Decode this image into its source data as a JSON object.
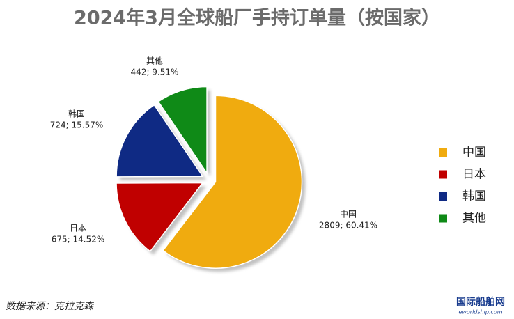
{
  "chart_data": {
    "type": "pie",
    "title": "2024年3月全球船厂手持订单量（按国家）",
    "categories": [
      "中国",
      "日本",
      "韩国",
      "其他"
    ],
    "values": [
      2809,
      675,
      724,
      442
    ],
    "value_labels": [
      "2809; 60.41%",
      "675; 14.52%",
      "724; 15.57%",
      "442; 9.51%"
    ],
    "colors": [
      "#f0ab0f",
      "#c00000",
      "#0f2a84",
      "#0f8a17"
    ],
    "legend": "right",
    "source": "数据来源：克拉克森",
    "watermark": "国际船舶网",
    "watermark_url": "eworldship.com"
  }
}
